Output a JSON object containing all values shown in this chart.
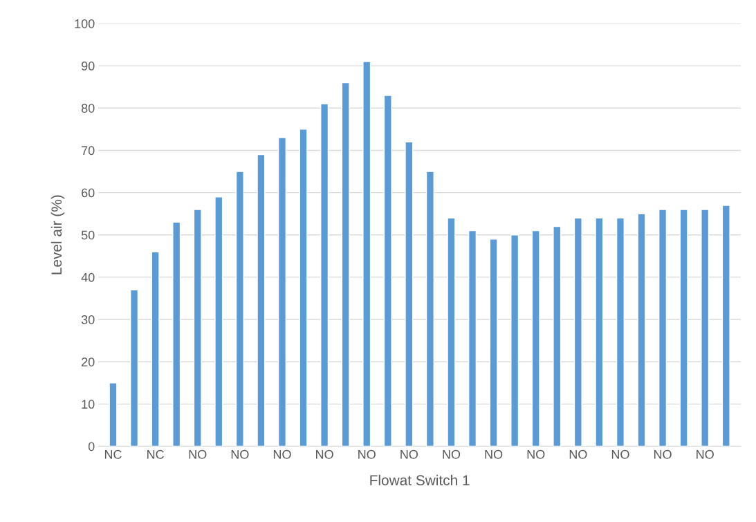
{
  "chart_data": {
    "type": "bar",
    "xlabel": "Flowat Switch 1",
    "ylabel": "Level air (%)",
    "categories": [
      "NC",
      null,
      "NC",
      null,
      "NO",
      null,
      "NO",
      null,
      "NO",
      null,
      "NO",
      null,
      "NO",
      null,
      "NO",
      null,
      "NO",
      null,
      "NO",
      null,
      "NO",
      null,
      "NO",
      null,
      "NO",
      null,
      "NO",
      null,
      "NO",
      null
    ],
    "values": [
      15,
      37,
      46,
      53,
      56,
      59,
      65,
      69,
      73,
      75,
      81,
      86,
      91,
      83,
      72,
      65,
      54,
      51,
      49,
      50,
      51,
      52,
      54,
      54,
      54,
      55,
      56,
      56,
      56,
      57
    ],
    "color": "#5b9bd5",
    "ylim": [
      0,
      100
    ],
    "yticks": [
      0,
      10,
      20,
      30,
      40,
      50,
      60,
      70,
      80,
      90,
      100
    ],
    "grid": "y",
    "legend": false
  }
}
